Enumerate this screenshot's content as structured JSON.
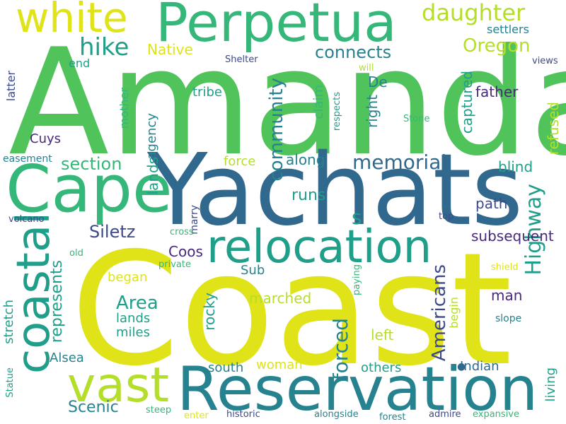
{
  "words": {
    "amanda": "Amanda",
    "coast": "Coast",
    "yachats": "Yachats",
    "reservation": "Reservation",
    "cape": "Cape",
    "perpetua": "Perpetua",
    "relocation": "relocation",
    "coastal": "coastal",
    "vast": "vast",
    "white": "white",
    "daughter": "daughter",
    "hike": "hike",
    "native": "Native",
    "oregon": "Oregon",
    "connects": "connects",
    "settlers": "settlers",
    "shelter": "Shelter",
    "will": "will",
    "views": "views",
    "end": "end",
    "latter": "latter",
    "mother": "mother",
    "tribe": "tribe",
    "community": "community",
    "claim": "claim",
    "respects": "respects",
    "de": "De",
    "right": "right",
    "captured": "captured",
    "father": "father",
    "refused": "refused",
    "stone": "Stone",
    "agency": "agency",
    "cuys": "Cuys",
    "easement": "easement",
    "section": "section",
    "force": "force",
    "along": "along",
    "memorial": "memorial",
    "blind": "blind",
    "highway": "Highway",
    "lands": "lands",
    "siletz": "Siletz",
    "volcano": "volcano",
    "marry": "marry",
    "cross": "cross",
    "runs": "runs",
    "path": "path",
    "top": "top",
    "subsequent": "subsequent",
    "s": "s",
    "coos": "Coos",
    "old": "old",
    "private": "private",
    "americans": "Americans",
    "sub": "Sub",
    "began": "began",
    "represents": "represents",
    "area": "Area",
    "paying": "paying",
    "man": "man",
    "shield": "shield",
    "marched": "marched",
    "stretch": "stretch",
    "rocky": "rocky",
    "miles": "miles",
    "begin": "begin",
    "slope": "slope",
    "living": "living",
    "left": "left",
    "forced": "forced",
    "alsea": "Alsea",
    "statue": "Statue",
    "woman": "woman",
    "south": "south",
    "others": "others",
    "indian": "Indian",
    "scenic": "Scenic",
    "steep": "steep",
    "enter": "enter",
    "historic": "historic",
    "alongside": "alongside",
    "forest": "forest",
    "admire": "admire",
    "expansive": "expansive"
  },
  "palette": {
    "yellow": "#dfe318",
    "lime": "#b5de2b",
    "lightgreen": "#6ece58",
    "green": "#35b779",
    "teal": "#1f9e89",
    "tealblue": "#26828e",
    "blue": "#31688e",
    "indigo": "#3e4989",
    "purple": "#482878",
    "darkpurple": "#440154"
  }
}
